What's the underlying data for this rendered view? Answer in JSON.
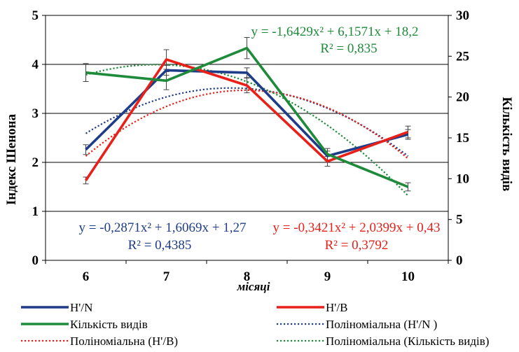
{
  "chart_data": {
    "type": "line",
    "x": [
      6,
      7,
      8,
      9,
      10
    ],
    "xlabel": "місяці",
    "ylabel": "Індекс Шенона",
    "y2label": "Кількість видів",
    "ylim": [
      0,
      5
    ],
    "y2lim": [
      0,
      30
    ],
    "yticks": [
      0,
      1,
      2,
      3,
      4,
      5
    ],
    "y2ticks": [
      0,
      5,
      10,
      15,
      20,
      25,
      30
    ],
    "grid": true,
    "legend_position": "bottom",
    "series": [
      {
        "name": "H'/N",
        "axis": "left",
        "color": "#1f3c88",
        "values": [
          2.26,
          3.88,
          3.83,
          2.13,
          2.57
        ],
        "errors": [
          0.1,
          0.1,
          0.1,
          0.1,
          0.1
        ]
      },
      {
        "name": "H'/B",
        "axis": "left",
        "color": "#e8201a",
        "values": [
          1.63,
          4.1,
          3.57,
          2.02,
          2.62
        ],
        "errors": [
          0.07,
          0.2,
          0.15,
          0.1,
          0.12
        ]
      },
      {
        "name": "Кількість видів",
        "axis": "right",
        "color": "#1e8a3a",
        "values": [
          23,
          22,
          26,
          13,
          9
        ],
        "errors": [
          1.1,
          1.1,
          1.3,
          0.7,
          0.5
        ]
      }
    ],
    "trendlines": [
      {
        "name": "Поліноміальна (H'/N )",
        "of": "H'/N",
        "axis": "left",
        "color": "#1f3c88",
        "coefficients": [
          -0.2871,
          1.6069,
          1.27
        ],
        "equation": "y = -0,2871x² + 1,6069x + 1,27",
        "r2": "R² = 0,4385"
      },
      {
        "name": "Поліноміальна (H'/B)",
        "of": "H'/B",
        "axis": "left",
        "color": "#e8201a",
        "coefficients": [
          -0.3421,
          2.0399,
          0.43
        ],
        "equation": "y = -0,3421x² + 2,0399x + 0,43",
        "r2": "R² = 0,3792"
      },
      {
        "name": "Поліноміальна (Кількість видів)",
        "of": "Кількість видів",
        "axis": "right",
        "color": "#1e8a3a",
        "coefficients": [
          -1.6429,
          6.1571,
          18.2
        ],
        "equation": "y = -1,6429x² + 6,1571x + 18,2",
        "r2": "R² = 0,835"
      }
    ]
  },
  "legend": [
    {
      "label": "H'/N",
      "style": "solid",
      "color": "#1f3c88"
    },
    {
      "label": "H'/B",
      "style": "solid",
      "color": "#e8201a"
    },
    {
      "label": "Кількість видів",
      "style": "solid",
      "color": "#1e8a3a"
    },
    {
      "label": "Поліноміальна (H'/N )",
      "style": "dotted",
      "color": "#1f3c88"
    },
    {
      "label": "Поліноміальна (H'/B)",
      "style": "dotted",
      "color": "#e8201a"
    },
    {
      "label": "Поліноміальна (Кількість видів)",
      "style": "dotted",
      "color": "#1e8a3a"
    }
  ]
}
